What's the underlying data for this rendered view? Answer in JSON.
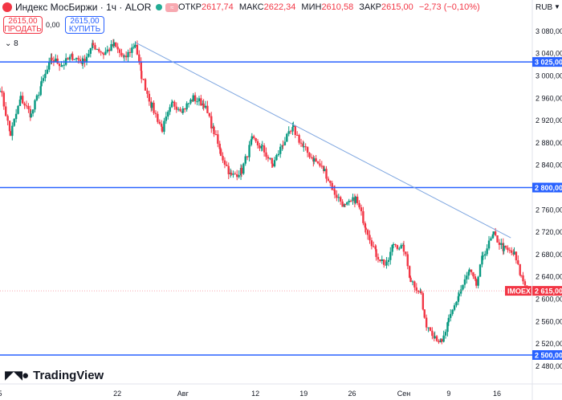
{
  "header": {
    "symbol_title": "Индекс МосБиржи · 1ч · ALOR",
    "ohlc": {
      "open_label": "ОТКР",
      "open": "2617,74",
      "high_label": "МАКС",
      "high": "2622,34",
      "low_label": "МИН",
      "low": "2610,58",
      "close_label": "ЗАКР",
      "close": "2615,00",
      "change": "−2,73 (−0,10%)"
    },
    "sell_price": "2615,00",
    "sell_label": "ПРОДАТЬ",
    "buy_price": "2615,00",
    "buy_label": "КУПИТЬ",
    "spread": "0,00",
    "indicator_count": "8",
    "currency": "RUB"
  },
  "branding": {
    "logo_text": "TradingView",
    "logo_icon": "tradingview-logo-icon"
  },
  "colors": {
    "up": "#089981",
    "down": "#f23645",
    "level": "#2962ff",
    "trend": "#7ea6e0",
    "price_label": "#f23645"
  },
  "chart_data": {
    "type": "candlestick",
    "y_tick_labels": [
      "3 080,00",
      "3 040,00",
      "3 000,00",
      "2 960,00",
      "2 920,00",
      "2 880,00",
      "2 840,00",
      "2 760,00",
      "2 720,00",
      "2 680,00",
      "2 640,00",
      "2 600,00",
      "2 560,00",
      "2 520,00",
      "2 480,00"
    ],
    "y_tick_values": [
      3080,
      3040,
      3000,
      2960,
      2920,
      2880,
      2840,
      2760,
      2720,
      2680,
      2640,
      2600,
      2560,
      2520,
      2480
    ],
    "x_tick_labels": [
      "5",
      "22",
      "Авг",
      "12",
      "19",
      "26",
      "Сен",
      "9",
      "16"
    ],
    "x_tick_days": [
      0,
      17,
      26.5,
      37,
      44,
      51,
      58.5,
      65,
      72
    ],
    "ylim": [
      2470,
      3120
    ],
    "xlim": [
      0,
      77
    ],
    "horizontal_levels": [
      {
        "value": 3025,
        "label": "3 025,00"
      },
      {
        "value": 2800,
        "label": "2 800,00"
      },
      {
        "value": 2500,
        "label": "2 500,00"
      }
    ],
    "trend_line": {
      "start": [
        19.6,
        3060
      ],
      "end": [
        74,
        2710
      ]
    },
    "current_price": {
      "value": 2615,
      "label": "2 615,00",
      "ticker": "IMOEX"
    },
    "series_path": [
      [
        0,
        2980
      ],
      [
        1.5,
        2895
      ],
      [
        3,
        2960
      ],
      [
        4.5,
        2930
      ],
      [
        6,
        2985
      ],
      [
        7.5,
        3030
      ],
      [
        9,
        3020
      ],
      [
        10.5,
        3035
      ],
      [
        12,
        3025
      ],
      [
        13.5,
        3055
      ],
      [
        15,
        3040
      ],
      [
        16.5,
        3055
      ],
      [
        18,
        3030
      ],
      [
        19.6,
        3058
      ],
      [
        20.5,
        3000
      ],
      [
        22,
        2945
      ],
      [
        23.5,
        2905
      ],
      [
        25,
        2950
      ],
      [
        26.5,
        2940
      ],
      [
        28,
        2960
      ],
      [
        29.5,
        2950
      ],
      [
        31,
        2900
      ],
      [
        32,
        2860
      ],
      [
        33.5,
        2820
      ],
      [
        35,
        2830
      ],
      [
        36.5,
        2885
      ],
      [
        38,
        2870
      ],
      [
        39.5,
        2840
      ],
      [
        41,
        2880
      ],
      [
        42.5,
        2905
      ],
      [
        44,
        2870
      ],
      [
        45.5,
        2850
      ],
      [
        47,
        2830
      ],
      [
        48.5,
        2790
      ],
      [
        50,
        2765
      ],
      [
        51.5,
        2780
      ],
      [
        53,
        2730
      ],
      [
        54.5,
        2680
      ],
      [
        56,
        2660
      ],
      [
        57,
        2700
      ],
      [
        58.5,
        2690
      ],
      [
        59.5,
        2635
      ],
      [
        61,
        2610
      ],
      [
        61.5,
        2560
      ],
      [
        63,
        2535
      ],
      [
        64,
        2520
      ],
      [
        65,
        2560
      ],
      [
        66.5,
        2610
      ],
      [
        68,
        2650
      ],
      [
        69,
        2625
      ],
      [
        70,
        2680
      ],
      [
        71.5,
        2715
      ],
      [
        73,
        2690
      ],
      [
        74.5,
        2680
      ],
      [
        75.5,
        2640
      ],
      [
        76.5,
        2615
      ]
    ]
  }
}
